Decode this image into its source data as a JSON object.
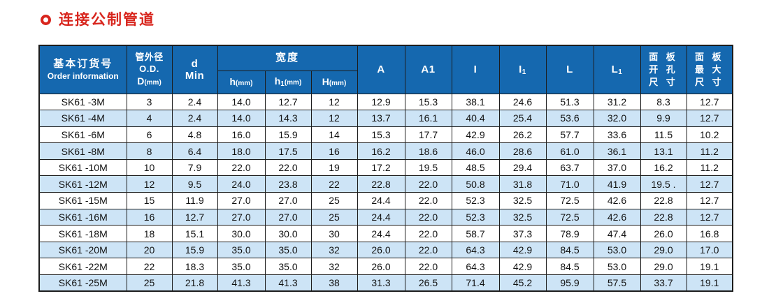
{
  "title": {
    "text": "连接公制管道"
  },
  "colors": {
    "title_red": "#d8251d",
    "header_bg": "#1568af",
    "header_text": "#ffffff",
    "row_alt_bg": "#cde4f6",
    "border": "#1c1c1c"
  },
  "table": {
    "headers": {
      "order_zh": "基本订货号",
      "order_en": "Order information",
      "od_zh": "管外径O.D.",
      "od_sub_main": "D",
      "od_sub_unit": "(mm)",
      "d_line1": "d",
      "d_line2": "Min",
      "width_group": "宽度",
      "h_main": "h",
      "h_unit": "(mm)",
      "h1_main": "h",
      "h1_sub": "1",
      "h1_unit": "(mm)",
      "H_main": "H",
      "H_unit": "(mm)",
      "A": "A",
      "A1": "A1",
      "I": "I",
      "I1_main": "I",
      "I1_sub": "1",
      "L": "L",
      "L1_main": "L",
      "L1_sub": "1",
      "panel_hole_lines": [
        "面 板",
        "开 孔",
        "尺 寸"
      ],
      "panel_max_lines": [
        "面 板",
        "最 大",
        "尺 寸"
      ]
    },
    "rows": [
      [
        "SK61 -3M",
        "3",
        "2.4",
        "14.0",
        "12.7",
        "12",
        "12.9",
        "15.3",
        "38.1",
        "24.6",
        "51.3",
        "31.2",
        "8.3",
        "12.7"
      ],
      [
        "SK61 -4M",
        "4",
        "2.4",
        "14.0",
        "14.3",
        "12",
        "13.7",
        "16.1",
        "40.4",
        "25.4",
        "53.6",
        "32.0",
        "9.9",
        "12.7"
      ],
      [
        "SK61 -6M",
        "6",
        "4.8",
        "16.0",
        "15.9",
        "14",
        "15.3",
        "17.7",
        "42.9",
        "26.2",
        "57.7",
        "33.6",
        "11.5",
        "10.2"
      ],
      [
        "SK61 -8M",
        "8",
        "6.4",
        "18.0",
        "17.5",
        "16",
        "16.2",
        "18.6",
        "46.0",
        "28.6",
        "61.0",
        "36.1",
        "13.1",
        "11.2"
      ],
      [
        "SK61 -10M",
        "10",
        "7.9",
        "22.0",
        "22.0",
        "19",
        "17.2",
        "19.5",
        "48.5",
        "29.4",
        "63.7",
        "37.0",
        "16.2",
        "11.2"
      ],
      [
        "SK61 -12M",
        "12",
        "9.5",
        "24.0",
        "23.8",
        "22",
        "22.8",
        "22.0",
        "50.8",
        "31.8",
        "71.0",
        "41.9",
        "19.5 .",
        "12.7"
      ],
      [
        "SK61 -15M",
        "15",
        "11.9",
        "27.0",
        "27.0",
        "25",
        "24.4",
        "22.0",
        "52.3",
        "32.5",
        "72.5",
        "42.6",
        "22.8",
        "12.7"
      ],
      [
        "SK61 -16M",
        "16",
        "12.7",
        "27.0",
        "27.0",
        "25",
        "24.4",
        "22.0",
        "52.3",
        "32.5",
        "72.5",
        "42.6",
        "22.8",
        "12.7"
      ],
      [
        "SK61 -18M",
        "18",
        "15.1",
        "30.0",
        "30.0",
        "30",
        "24.4",
        "22.0",
        "58.7",
        "37.3",
        "78.9",
        "47.4",
        "26.0",
        "16.8"
      ],
      [
        "SK61 -20M",
        "20",
        "15.9",
        "35.0",
        "35.0",
        "32",
        "26.0",
        "22.0",
        "64.3",
        "42.9",
        "84.5",
        "53.0",
        "29.0",
        "17.0"
      ],
      [
        "SK61 -22M",
        "22",
        "18.3",
        "35.0",
        "35.0",
        "32",
        "26.0",
        "22.0",
        "64.3",
        "42.9",
        "84.5",
        "53.0",
        "29.0",
        "19.1"
      ],
      [
        "SK61 -25M",
        "25",
        "21.8",
        "41.3",
        "41.3",
        "38",
        "31.3",
        "26.5",
        "71.4",
        "45.2",
        "95.9",
        "57.5",
        "33.7",
        "19.1"
      ]
    ]
  }
}
